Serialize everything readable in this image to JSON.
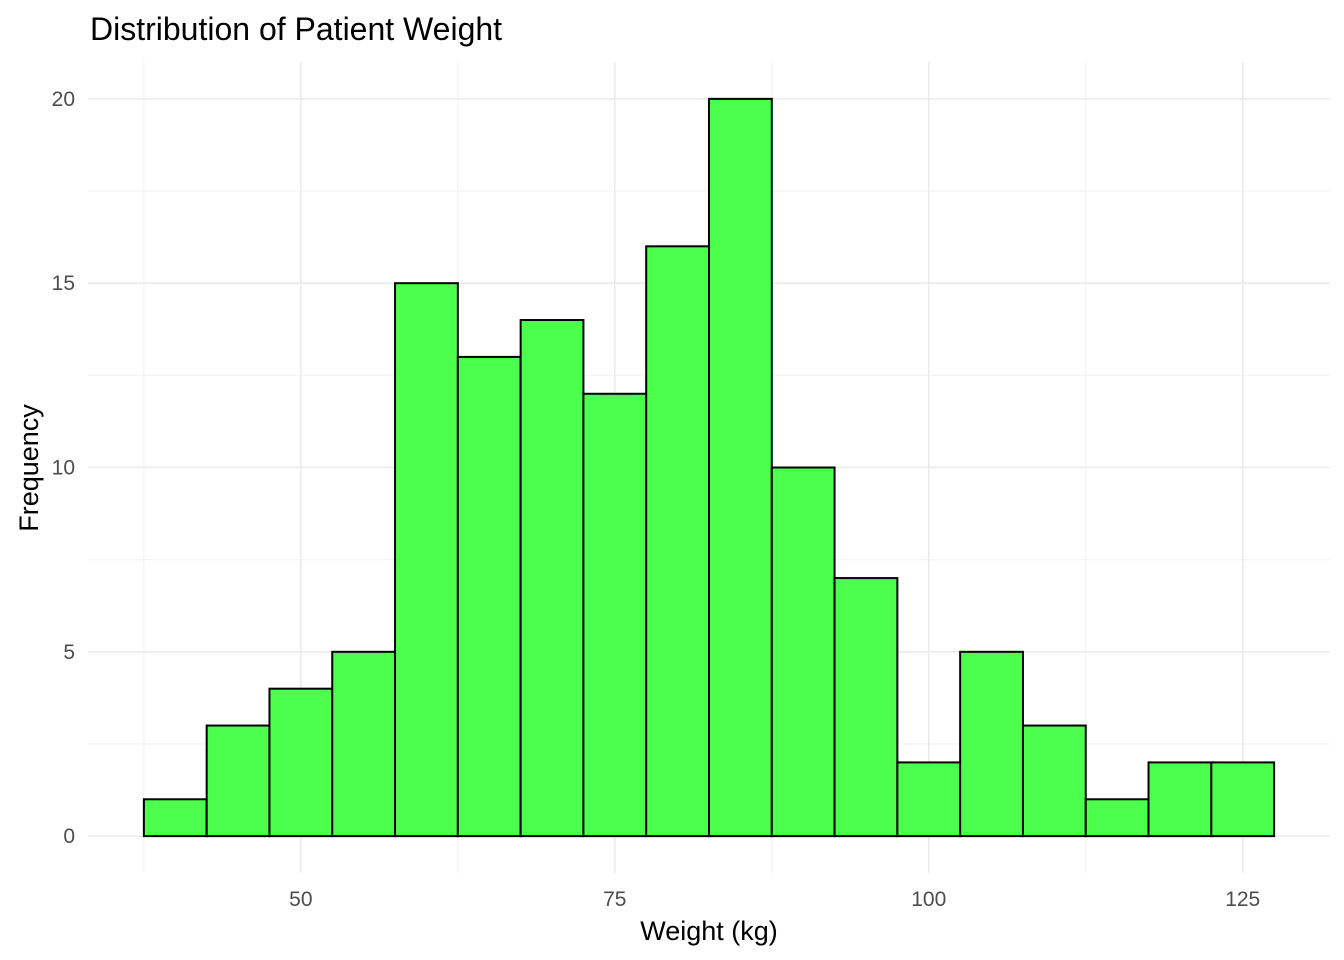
{
  "colors": {
    "bar_fill": "#4dff4d",
    "bar_outline": "#000000",
    "background": "#ffffff"
  },
  "chart_data": {
    "type": "bar",
    "subtype": "histogram",
    "title": "Distribution of Patient Weight",
    "xlabel": "Weight (kg)",
    "ylabel": "Frequency",
    "bin_width": 5,
    "bin_edges": [
      37.5,
      42.5,
      47.5,
      52.5,
      57.5,
      62.5,
      67.5,
      72.5,
      77.5,
      82.5,
      87.5,
      92.5,
      97.5,
      102.5,
      107.5,
      112.5,
      117.5,
      122.5,
      127.5
    ],
    "values": [
      1,
      3,
      4,
      5,
      15,
      13,
      14,
      12,
      16,
      20,
      10,
      7,
      2,
      5,
      3,
      1,
      2,
      2
    ],
    "xlim": [
      33.05,
      131.95
    ],
    "ylim": [
      -1,
      21
    ],
    "x_ticks": [
      50,
      75,
      100,
      125
    ],
    "y_ticks": [
      0,
      5,
      10,
      15,
      20
    ],
    "grid": true,
    "legend": "none"
  }
}
